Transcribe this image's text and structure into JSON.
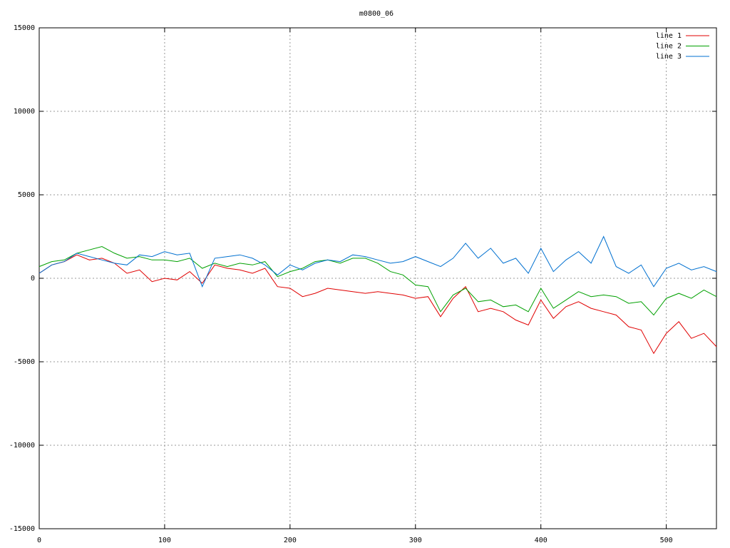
{
  "chart_data": {
    "type": "line",
    "title": "m0800_06",
    "x": [
      0,
      10,
      20,
      30,
      40,
      50,
      60,
      70,
      80,
      90,
      100,
      110,
      120,
      130,
      140,
      150,
      160,
      170,
      180,
      190,
      200,
      210,
      220,
      230,
      240,
      250,
      260,
      270,
      280,
      290,
      300,
      310,
      320,
      330,
      340,
      350,
      360,
      370,
      380,
      390,
      400,
      410,
      420,
      430,
      440,
      450,
      460,
      470,
      480,
      490,
      500,
      510,
      520,
      530,
      540
    ],
    "series": [
      {
        "name": "line 1",
        "color": "#e00000",
        "values": [
          300,
          800,
          1000,
          1400,
          1100,
          1200,
          900,
          300,
          500,
          -200,
          0,
          -100,
          400,
          -300,
          800,
          600,
          500,
          300,
          600,
          -500,
          -600,
          -1100,
          -900,
          -600,
          -700,
          -800,
          -900,
          -800,
          -900,
          -1000,
          -1200,
          -1100,
          -2300,
          -1200,
          -500,
          -2000,
          -1800,
          -2000,
          -2500,
          -2800,
          -1300,
          -2400,
          -1700,
          -1400,
          -1800,
          -2000,
          -2200,
          -2900,
          -3100,
          -4500,
          -3300,
          -2600,
          -3600,
          -3300,
          -4100
        ]
      },
      {
        "name": "line 2",
        "color": "#00a000",
        "values": [
          700,
          1000,
          1100,
          1500,
          1700,
          1900,
          1500,
          1200,
          1300,
          1100,
          1100,
          1000,
          1200,
          600,
          900,
          700,
          900,
          800,
          1000,
          100,
          400,
          600,
          1000,
          1100,
          900,
          1200,
          1200,
          900,
          400,
          200,
          -400,
          -500,
          -2000,
          -1000,
          -600,
          -1400,
          -1300,
          -1700,
          -1600,
          -2000,
          -600,
          -1800,
          -1300,
          -800,
          -1100,
          -1000,
          -1100,
          -1500,
          -1400,
          -2200,
          -1200,
          -900,
          -1200,
          -700,
          -1100
        ]
      },
      {
        "name": "line 3",
        "color": "#0070d0",
        "values": [
          300,
          800,
          1000,
          1500,
          1300,
          1100,
          900,
          800,
          1400,
          1300,
          1600,
          1400,
          1500,
          -500,
          1200,
          1300,
          1400,
          1200,
          800,
          200,
          800,
          500,
          900,
          1100,
          1000,
          1400,
          1300,
          1100,
          900,
          1000,
          1300,
          1000,
          700,
          1200,
          2100,
          1200,
          1800,
          900,
          1200,
          300,
          1800,
          400,
          1100,
          1600,
          900,
          2500,
          700,
          300,
          800,
          -500,
          600,
          900,
          500,
          700,
          400
        ]
      }
    ],
    "xlim": [
      0,
      540
    ],
    "xticks": [
      0,
      100,
      200,
      300,
      400,
      500
    ],
    "ylim": [
      -15000,
      15000
    ],
    "yticks": [
      -15000,
      -10000,
      -5000,
      0,
      5000,
      10000,
      15000
    ],
    "grid": true,
    "legend": "top-right"
  }
}
